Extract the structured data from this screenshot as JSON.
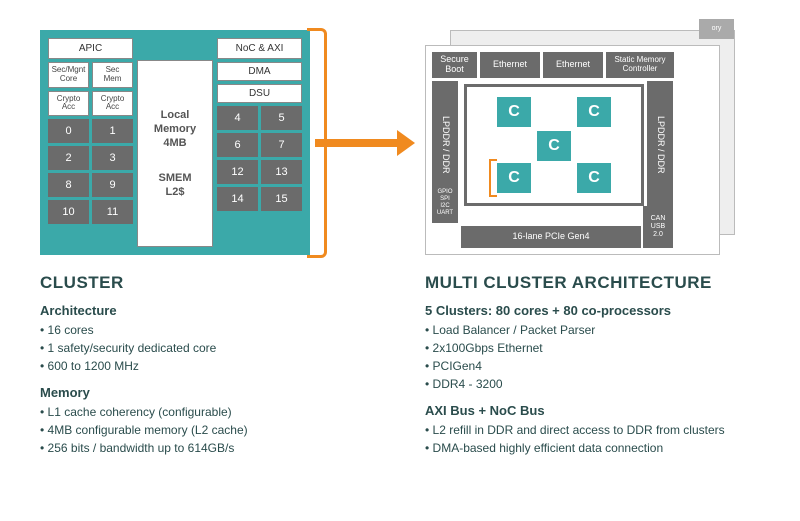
{
  "colors": {
    "teal": "#3ba9a9",
    "orange": "#f08a1f",
    "gray": "#6b6b6b",
    "text": "#2a4c4c"
  },
  "cluster_diagram": {
    "left_top_wide": "APIC",
    "left_row2": [
      "Sec/Mgnt\nCore",
      "Sec\nMem"
    ],
    "left_row3": [
      "Crypto\nAcc",
      "Crypto\nAcc"
    ],
    "left_cores": [
      [
        "0",
        "1"
      ],
      [
        "2",
        "3"
      ],
      [
        "8",
        "9"
      ],
      [
        "10",
        "11"
      ]
    ],
    "center_local_mem_l1": "Local",
    "center_local_mem_l2": "Memory",
    "center_local_mem_l3": "4MB",
    "center_smem_l1": "SMEM",
    "center_smem_l2": "L2$",
    "right_top_wide": "NoC & AXI",
    "right_row2": "DMA",
    "right_row3": "DSU",
    "right_cores": [
      [
        "4",
        "5"
      ],
      [
        "6",
        "7"
      ],
      [
        "12",
        "13"
      ],
      [
        "14",
        "15"
      ]
    ]
  },
  "multi_diagram": {
    "top": [
      "Secure\nBoot",
      "Ethernet",
      "Ethernet",
      "Static Memory\nController"
    ],
    "left": "LPDDR / DDR",
    "right": "LPDDR / DDR",
    "gpio": "GPIO\nSPI\nI2C\nUART",
    "pcie": "16-lane PCIe Gen4",
    "can": "CAN\nUSB\n2.0",
    "mem_back": "ory",
    "tile_label": "C"
  },
  "cluster_text": {
    "title": "CLUSTER",
    "arch_heading": "Architecture",
    "arch_bullets": [
      "16 cores",
      "1 safety/security dedicated core",
      "600 to 1200 MHz"
    ],
    "mem_heading": "Memory",
    "mem_bullets": [
      "L1 cache coherency (configurable)",
      "4MB configurable memory (L2 cache)",
      "256 bits / bandwidth up to 614GB/s"
    ]
  },
  "multi_text": {
    "title": "MULTI CLUSTER ARCHITECTURE",
    "clusters_heading": "5 Clusters: 80 cores + 80 co-processors",
    "clusters_bullets": [
      "Load Balancer / Packet Parser",
      "2x100Gbps Ethernet",
      "PCIGen4",
      "DDR4 - 3200"
    ],
    "bus_heading": "AXI Bus + NoC Bus",
    "bus_bullets": [
      "L2 refill in DDR and direct access to DDR from clusters",
      "DMA-based highly efficient data connection"
    ]
  }
}
